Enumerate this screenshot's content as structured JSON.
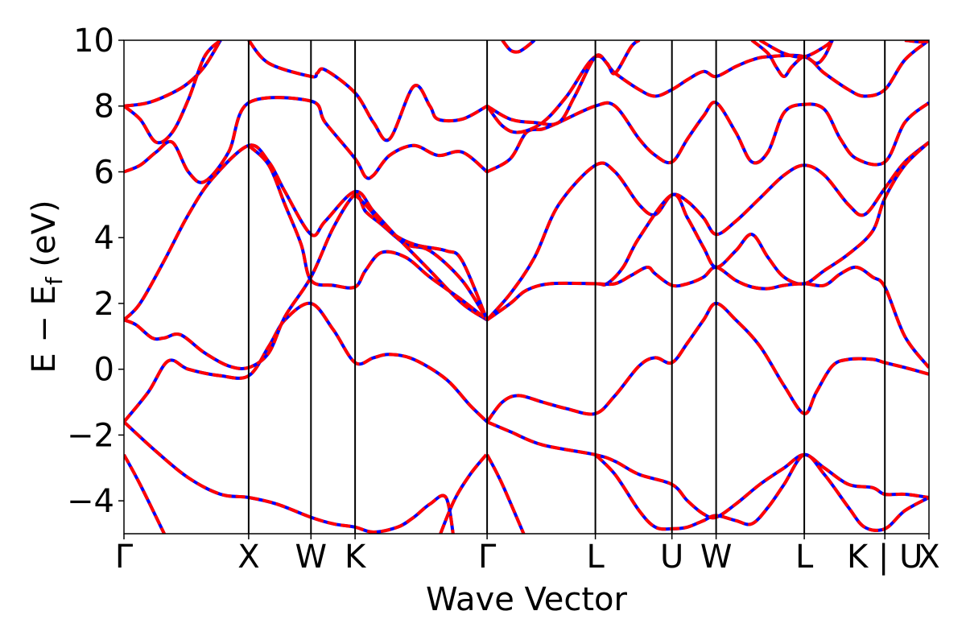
{
  "chart_data": {
    "type": "line",
    "title": "",
    "xlabel": "Wave Vector",
    "ylabel_parts": {
      "main": "E − E",
      "sub": "f",
      "unit": " (eV)"
    },
    "ylim": [
      -5,
      10
    ],
    "xlim": [
      0,
      1
    ],
    "yticks": [
      -4,
      -2,
      0,
      2,
      4,
      6,
      8,
      10
    ],
    "ytick_labels": [
      "−4",
      "−2",
      "0",
      "2",
      "4",
      "6",
      "8",
      "10"
    ],
    "kpoints": [
      {
        "label": "Γ",
        "x": 0.0
      },
      {
        "label": "X",
        "x": 0.1549
      },
      {
        "label": "W",
        "x": 0.2323
      },
      {
        "label": "K",
        "x": 0.2871
      },
      {
        "label": "Γ",
        "x": 0.4511
      },
      {
        "label": "L",
        "x": 0.5856
      },
      {
        "label": "U",
        "x": 0.6807
      },
      {
        "label": "W",
        "x": 0.7356
      },
      {
        "label": "L",
        "x": 0.8451
      },
      {
        "label": "K | U",
        "x": 0.9452
      },
      {
        "label": "X",
        "x": 1.0
      }
    ],
    "grid": false,
    "legend": "none",
    "series": [
      {
        "color": "#0000ff",
        "style": "solid"
      },
      {
        "color": "#ff0000",
        "style": "dashed"
      }
    ],
    "bands": [
      [
        [
          0,
          -2.6
        ],
        [
          0.02,
          -3.5
        ],
        [
          0.054,
          -5.2
        ]
      ],
      [
        [
          0,
          -1.6
        ],
        [
          0.04,
          -2.5
        ],
        [
          0.08,
          -3.3
        ],
        [
          0.12,
          -3.8
        ],
        [
          0.1549,
          -3.9
        ],
        [
          0.19,
          -4.1
        ],
        [
          0.2323,
          -4.5
        ],
        [
          0.26,
          -4.7
        ],
        [
          0.2871,
          -4.8
        ],
        [
          0.31,
          -4.95
        ],
        [
          0.34,
          -4.8
        ],
        [
          0.36,
          -4.5
        ],
        [
          0.38,
          -4.1
        ],
        [
          0.4,
          -3.9
        ],
        [
          0.41,
          -5.2
        ]
      ],
      [
        [
          0,
          -1.6
        ],
        [
          0.03,
          -0.7
        ],
        [
          0.055,
          0.25
        ],
        [
          0.08,
          0.0
        ],
        [
          0.12,
          -0.2
        ],
        [
          0.1549,
          -0.2
        ],
        [
          0.18,
          0.7
        ],
        [
          0.2,
          1.5
        ],
        [
          0.2323,
          2.0
        ],
        [
          0.26,
          1.2
        ],
        [
          0.2871,
          0.2
        ],
        [
          0.31,
          0.35
        ],
        [
          0.33,
          0.45
        ],
        [
          0.36,
          0.3
        ],
        [
          0.4,
          -0.3
        ],
        [
          0.43,
          -1.1
        ],
        [
          0.4511,
          -1.6
        ]
      ],
      [
        [
          0.0,
          1.5
        ],
        [
          0.015,
          1.35
        ],
        [
          0.035,
          0.95
        ],
        [
          0.05,
          0.95
        ],
        [
          0.07,
          1.05
        ],
        [
          0.1,
          0.5
        ],
        [
          0.13,
          0.1
        ],
        [
          0.1549,
          0.05
        ],
        [
          0.18,
          0.5
        ],
        [
          0.2,
          1.6
        ],
        [
          0.2323,
          2.8
        ],
        [
          0.26,
          4.3
        ],
        [
          0.2871,
          5.3
        ],
        [
          0.3,
          4.8
        ],
        [
          0.32,
          4.4
        ],
        [
          0.35,
          3.8
        ],
        [
          0.38,
          3.6
        ],
        [
          0.42,
          2.7
        ],
        [
          0.4511,
          1.5
        ]
      ],
      [
        [
          0,
          1.5
        ],
        [
          0.02,
          2.0
        ],
        [
          0.05,
          3.3
        ],
        [
          0.08,
          4.7
        ],
        [
          0.11,
          5.8
        ],
        [
          0.1549,
          6.8
        ],
        [
          0.18,
          6.3
        ],
        [
          0.2,
          5.4
        ],
        [
          0.2323,
          4.1
        ],
        [
          0.25,
          4.5
        ],
        [
          0.2871,
          5.4
        ],
        [
          0.31,
          4.8
        ],
        [
          0.34,
          4.0
        ],
        [
          0.38,
          3.0
        ],
        [
          0.42,
          2.0
        ],
        [
          0.4511,
          1.5
        ]
      ],
      [
        [
          0.1549,
          6.8
        ],
        [
          0.18,
          6.2
        ],
        [
          0.2,
          5.0
        ],
        [
          0.22,
          3.8
        ],
        [
          0.2323,
          2.7
        ],
        [
          0.26,
          2.55
        ],
        [
          0.2871,
          2.5
        ],
        [
          0.3,
          3.0
        ],
        [
          0.32,
          3.55
        ],
        [
          0.35,
          3.4
        ],
        [
          0.38,
          2.8
        ],
        [
          0.42,
          2.1
        ],
        [
          0.4511,
          1.5
        ]
      ],
      [
        [
          0,
          6.0
        ],
        [
          0.02,
          6.2
        ],
        [
          0.04,
          6.6
        ],
        [
          0.06,
          6.9
        ],
        [
          0.08,
          6.0
        ],
        [
          0.1,
          5.7
        ],
        [
          0.13,
          6.6
        ],
        [
          0.1549,
          8.1
        ],
        [
          0.2323,
          8.15
        ],
        [
          0.25,
          7.5
        ],
        [
          0.2871,
          6.4
        ],
        [
          0.3,
          5.85
        ],
        [
          0.31,
          5.9
        ],
        [
          0.33,
          6.5
        ],
        [
          0.36,
          6.8
        ],
        [
          0.39,
          6.5
        ],
        [
          0.42,
          6.6
        ],
        [
          0.4511,
          6.0
        ]
      ],
      [
        [
          0,
          8.0
        ],
        [
          0.03,
          8.1
        ],
        [
          0.06,
          8.4
        ],
        [
          0.08,
          8.7
        ],
        [
          0.1,
          9.2
        ],
        [
          0.12,
          10.0
        ]
      ],
      [
        [
          0,
          8.0
        ],
        [
          0.02,
          7.6
        ],
        [
          0.04,
          6.9
        ],
        [
          0.06,
          7.2
        ],
        [
          0.08,
          8.2
        ],
        [
          0.1,
          9.5
        ],
        [
          0.12,
          10.0
        ]
      ],
      [
        [
          0.1549,
          10.0
        ],
        [
          0.18,
          9.3
        ],
        [
          0.2323,
          8.9
        ],
        [
          0.24,
          9.0
        ],
        [
          0.25,
          9.1
        ],
        [
          0.2871,
          8.4
        ],
        [
          0.31,
          7.5
        ],
        [
          0.33,
          7.0
        ],
        [
          0.36,
          8.6
        ],
        [
          0.38,
          8.0
        ],
        [
          0.39,
          7.6
        ],
        [
          0.42,
          7.6
        ],
        [
          0.4511,
          8.0
        ]
      ],
      [
        [
          0.2871,
          5.3
        ],
        [
          0.3,
          5.0
        ],
        [
          0.33,
          4.2
        ],
        [
          0.36,
          3.8
        ],
        [
          0.4,
          3.6
        ],
        [
          0.42,
          3.3
        ],
        [
          0.4511,
          1.5
        ]
      ],
      [
        [
          0.4511,
          1.5
        ],
        [
          0.48,
          2.3
        ],
        [
          0.51,
          3.4
        ],
        [
          0.54,
          5.0
        ],
        [
          0.5856,
          6.2
        ],
        [
          0.61,
          6.0
        ],
        [
          0.64,
          5.0
        ],
        [
          0.66,
          4.7
        ],
        [
          0.6807,
          5.3
        ],
        [
          0.7,
          5.1
        ],
        [
          0.72,
          4.6
        ],
        [
          0.7356,
          4.1
        ],
        [
          0.76,
          4.5
        ],
        [
          0.79,
          5.2
        ],
        [
          0.82,
          5.9
        ],
        [
          0.8451,
          6.2
        ],
        [
          0.87,
          5.9
        ],
        [
          0.9,
          5.0
        ],
        [
          0.92,
          4.7
        ],
        [
          0.9452,
          5.5
        ],
        [
          0.97,
          6.3
        ],
        [
          1.0,
          6.9
        ]
      ],
      [
        [
          0.4511,
          1.5
        ],
        [
          0.48,
          2.0
        ],
        [
          0.5,
          2.4
        ],
        [
          0.53,
          2.6
        ],
        [
          0.5856,
          2.6
        ],
        [
          0.6,
          2.6
        ],
        [
          0.62,
          3.1
        ],
        [
          0.64,
          4.0
        ],
        [
          0.6807,
          5.3
        ],
        [
          0.7,
          4.6
        ],
        [
          0.72,
          3.7
        ],
        [
          0.7356,
          3.1
        ],
        [
          0.76,
          3.6
        ],
        [
          0.78,
          4.1
        ],
        [
          0.8,
          3.4
        ],
        [
          0.82,
          2.8
        ],
        [
          0.8451,
          2.6
        ],
        [
          0.87,
          3.0
        ],
        [
          0.9,
          3.5
        ],
        [
          0.93,
          4.2
        ],
        [
          0.9452,
          5.2
        ],
        [
          0.97,
          6.2
        ],
        [
          1.0,
          6.9
        ]
      ],
      [
        [
          0.5856,
          2.6
        ],
        [
          0.61,
          2.6
        ],
        [
          0.63,
          2.85
        ],
        [
          0.65,
          3.1
        ],
        [
          0.66,
          2.9
        ],
        [
          0.6807,
          2.55
        ],
        [
          0.7,
          2.6
        ],
        [
          0.72,
          2.8
        ],
        [
          0.7356,
          3.1
        ],
        [
          0.76,
          2.7
        ],
        [
          0.78,
          2.5
        ],
        [
          0.8,
          2.45
        ],
        [
          0.82,
          2.55
        ],
        [
          0.8451,
          2.6
        ],
        [
          0.87,
          2.55
        ],
        [
          0.89,
          2.9
        ],
        [
          0.91,
          3.1
        ],
        [
          0.93,
          2.8
        ],
        [
          0.9452,
          2.5
        ],
        [
          0.97,
          1.0
        ],
        [
          1.0,
          0.05
        ]
      ],
      [
        [
          0.4511,
          -1.6
        ],
        [
          0.47,
          -1.0
        ],
        [
          0.49,
          -0.8
        ],
        [
          0.52,
          -1.0
        ],
        [
          0.55,
          -1.2
        ],
        [
          0.5856,
          -1.35
        ],
        [
          0.61,
          -0.8
        ],
        [
          0.64,
          0.1
        ],
        [
          0.66,
          0.35
        ],
        [
          0.6807,
          0.2
        ],
        [
          0.7,
          0.8
        ],
        [
          0.72,
          1.5
        ],
        [
          0.7356,
          2.0
        ],
        [
          0.76,
          1.5
        ],
        [
          0.79,
          0.7
        ],
        [
          0.82,
          -0.5
        ],
        [
          0.8451,
          -1.35
        ],
        [
          0.86,
          -0.7
        ],
        [
          0.88,
          0.1
        ],
        [
          0.9,
          0.3
        ],
        [
          0.93,
          0.3
        ],
        [
          0.9452,
          0.2
        ],
        [
          0.97,
          0.05
        ],
        [
          1.0,
          -0.15
        ]
      ],
      [
        [
          0.4511,
          -1.6
        ],
        [
          0.48,
          -1.9
        ],
        [
          0.52,
          -2.3
        ],
        [
          0.5856,
          -2.6
        ],
        [
          0.61,
          -2.8
        ],
        [
          0.64,
          -3.2
        ],
        [
          0.6807,
          -3.5
        ],
        [
          0.7,
          -4.0
        ],
        [
          0.72,
          -4.4
        ],
        [
          0.7356,
          -4.5
        ],
        [
          0.76,
          -4.1
        ],
        [
          0.79,
          -3.5
        ],
        [
          0.82,
          -3.0
        ],
        [
          0.8451,
          -2.6
        ],
        [
          0.87,
          -3.0
        ],
        [
          0.9,
          -3.5
        ],
        [
          0.93,
          -3.6
        ],
        [
          0.9452,
          -3.8
        ],
        [
          0.97,
          -3.8
        ],
        [
          1.0,
          -3.9
        ]
      ],
      [
        [
          0.45,
          -2.6
        ],
        [
          0.43,
          -3.2
        ],
        [
          0.41,
          -4.0
        ],
        [
          0.39,
          -5.2
        ]
      ],
      [
        [
          0.4511,
          -2.6
        ],
        [
          0.47,
          -3.5
        ],
        [
          0.5,
          -5.2
        ]
      ],
      [
        [
          0.5856,
          -2.6
        ],
        [
          0.61,
          -3.2
        ],
        [
          0.64,
          -4.3
        ],
        [
          0.66,
          -4.8
        ],
        [
          0.6807,
          -4.85
        ],
        [
          0.7,
          -4.8
        ],
        [
          0.72,
          -4.6
        ],
        [
          0.7356,
          -4.45
        ],
        [
          0.76,
          -4.6
        ],
        [
          0.78,
          -4.7
        ],
        [
          0.8,
          -4.2
        ],
        [
          0.82,
          -3.5
        ],
        [
          0.8451,
          -2.6
        ],
        [
          0.87,
          -3.2
        ],
        [
          0.9,
          -4.2
        ],
        [
          0.92,
          -4.8
        ],
        [
          0.9452,
          -4.85
        ],
        [
          0.97,
          -4.3
        ],
        [
          1.0,
          -3.9
        ]
      ],
      [
        [
          0.4511,
          6.0
        ],
        [
          0.48,
          6.4
        ],
        [
          0.5,
          7.2
        ],
        [
          0.52,
          7.3
        ],
        [
          0.54,
          7.5
        ],
        [
          0.5856,
          8.0
        ],
        [
          0.61,
          8.0
        ],
        [
          0.64,
          7.0
        ],
        [
          0.66,
          6.5
        ],
        [
          0.6807,
          6.3
        ],
        [
          0.7,
          7.0
        ],
        [
          0.72,
          7.7
        ],
        [
          0.7356,
          8.1
        ],
        [
          0.76,
          7.2
        ],
        [
          0.78,
          6.3
        ],
        [
          0.8,
          6.6
        ],
        [
          0.82,
          7.8
        ],
        [
          0.8451,
          8.05
        ],
        [
          0.87,
          7.9
        ],
        [
          0.89,
          7.0
        ],
        [
          0.91,
          6.4
        ],
        [
          0.9452,
          6.3
        ],
        [
          0.97,
          7.5
        ],
        [
          1.0,
          8.1
        ]
      ],
      [
        [
          0.4511,
          8.0
        ],
        [
          0.47,
          7.4
        ],
        [
          0.49,
          7.2
        ],
        [
          0.52,
          7.5
        ],
        [
          0.55,
          8.3
        ],
        [
          0.5856,
          9.5
        ],
        [
          0.61,
          9.0
        ],
        [
          0.64,
          8.5
        ],
        [
          0.66,
          8.3
        ],
        [
          0.6807,
          8.5
        ],
        [
          0.7,
          8.8
        ],
        [
          0.72,
          9.05
        ],
        [
          0.7356,
          8.9
        ],
        [
          0.76,
          9.2
        ],
        [
          0.78,
          9.4
        ],
        [
          0.8,
          9.5
        ],
        [
          0.8451,
          9.5
        ],
        [
          0.87,
          9.0
        ],
        [
          0.9,
          8.5
        ],
        [
          0.92,
          8.3
        ],
        [
          0.9452,
          8.5
        ],
        [
          0.97,
          9.4
        ],
        [
          1.0,
          10.0
        ]
      ],
      [
        [
          0.4511,
          8.0
        ],
        [
          0.48,
          7.6
        ],
        [
          0.51,
          7.5
        ],
        [
          0.54,
          7.5
        ],
        [
          0.56,
          8.3
        ],
        [
          0.5856,
          9.5
        ],
        [
          0.6,
          9.3
        ],
        [
          0.61,
          9.0
        ],
        [
          0.63,
          9.8
        ],
        [
          0.64,
          10.0
        ]
      ],
      [
        [
          0.47,
          10.0
        ],
        [
          0.48,
          9.7
        ],
        [
          0.49,
          9.65
        ],
        [
          0.5,
          9.8
        ],
        [
          0.51,
          10.0
        ]
      ],
      [
        [
          0.78,
          10.0
        ],
        [
          0.8,
          9.6
        ],
        [
          0.81,
          9.2
        ],
        [
          0.82,
          8.9
        ],
        [
          0.83,
          9.2
        ],
        [
          0.8451,
          9.5
        ],
        [
          0.86,
          9.3
        ],
        [
          0.87,
          9.5
        ],
        [
          0.88,
          10.0
        ]
      ],
      [
        [
          0.79,
          10.0
        ],
        [
          0.82,
          9.6
        ],
        [
          0.8451,
          9.5
        ],
        [
          0.87,
          9.8
        ],
        [
          0.88,
          10.0
        ]
      ],
      [
        [
          0.97,
          10.0
        ],
        [
          0.99,
          9.95
        ],
        [
          1.0,
          10.0
        ]
      ]
    ]
  }
}
